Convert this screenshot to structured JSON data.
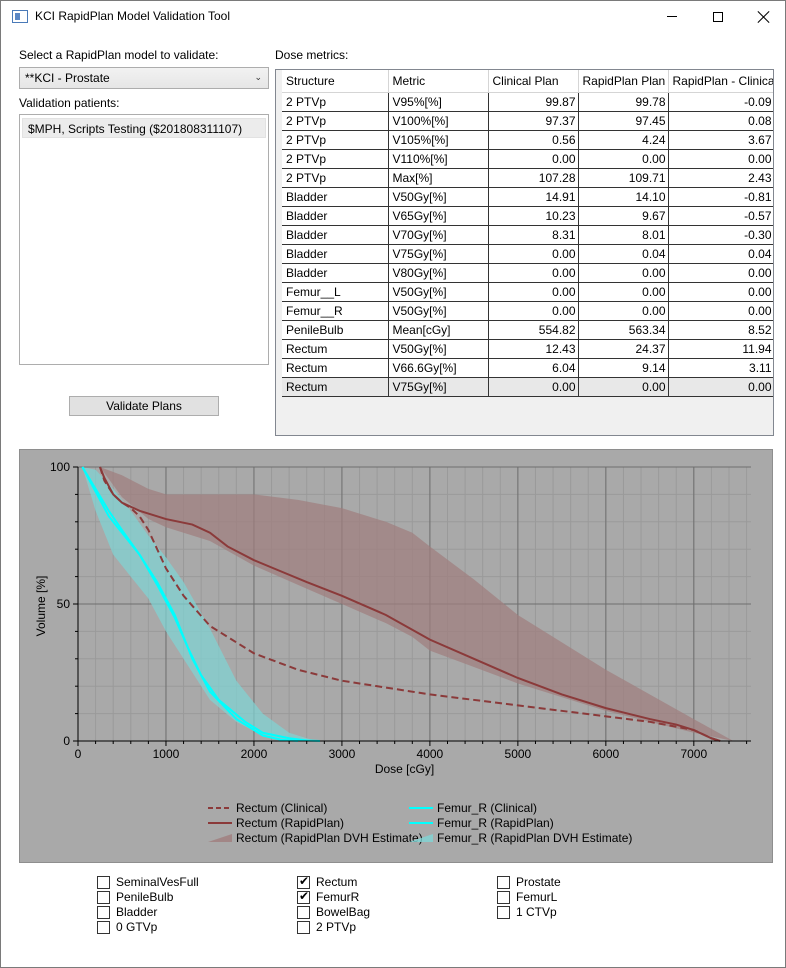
{
  "window": {
    "title": "KCI RapidPlan Model Validation Tool"
  },
  "left": {
    "model_label": "Select a RapidPlan model to validate:",
    "model_value": "**KCI - Prostate",
    "patients_label": "Validation patients:",
    "patients": [
      "$MPH, Scripts Testing ($201808311107)"
    ],
    "validate_button": "Validate Plans"
  },
  "metrics": {
    "label": "Dose metrics:",
    "columns": [
      "Structure",
      "Metric",
      "Clinical Plan",
      "RapidPlan Plan",
      "RapidPlan - Clinica"
    ],
    "rows": [
      [
        "2 PTVp",
        "V95%[%]",
        "99.87",
        "99.78",
        "-0.09"
      ],
      [
        "2 PTVp",
        "V100%[%]",
        "97.37",
        "97.45",
        "0.08"
      ],
      [
        "2 PTVp",
        "V105%[%]",
        "0.56",
        "4.24",
        "3.67"
      ],
      [
        "2 PTVp",
        "V110%[%]",
        "0.00",
        "0.00",
        "0.00"
      ],
      [
        "2 PTVp",
        "Max[%]",
        "107.28",
        "109.71",
        "2.43"
      ],
      [
        "Bladder",
        "V50Gy[%]",
        "14.91",
        "14.10",
        "-0.81"
      ],
      [
        "Bladder",
        "V65Gy[%]",
        "10.23",
        "9.67",
        "-0.57"
      ],
      [
        "Bladder",
        "V70Gy[%]",
        "8.31",
        "8.01",
        "-0.30"
      ],
      [
        "Bladder",
        "V75Gy[%]",
        "0.00",
        "0.04",
        "0.04"
      ],
      [
        "Bladder",
        "V80Gy[%]",
        "0.00",
        "0.00",
        "0.00"
      ],
      [
        "Femur__L",
        "V50Gy[%]",
        "0.00",
        "0.00",
        "0.00"
      ],
      [
        "Femur__R",
        "V50Gy[%]",
        "0.00",
        "0.00",
        "0.00"
      ],
      [
        "PenileBulb",
        "Mean[cGy]",
        "554.82",
        "563.34",
        "8.52"
      ],
      [
        "Rectum",
        "V50Gy[%]",
        "12.43",
        "24.37",
        "11.94"
      ],
      [
        "Rectum",
        "V66.6Gy[%]",
        "6.04",
        "9.14",
        "3.11"
      ],
      [
        "Rectum",
        "V75Gy[%]",
        "0.00",
        "0.00",
        "0.00"
      ]
    ]
  },
  "chart_data": {
    "type": "line",
    "xlabel": "Dose [cGy]",
    "ylabel": "Volume [%]",
    "xlim": [
      0,
      7650
    ],
    "ylim": [
      0,
      100
    ],
    "xticks": [
      "0",
      "1000",
      "2000",
      "3000",
      "4000",
      "5000",
      "6000",
      "7000"
    ],
    "yticks": [
      "0",
      "50",
      "100"
    ],
    "grid": true,
    "legend_position": "bottom",
    "colors": {
      "rectum": "#8b3a3a",
      "rectum_band": "#a07d7d",
      "femur": "#00ffff",
      "femur_band": "#7fd6d6",
      "background": "#a9a9a9"
    },
    "series": [
      {
        "name": "Rectum (Clinical)",
        "style": "dashed",
        "color": "#8b3a3a",
        "x": [
          250,
          300,
          400,
          500,
          600,
          700,
          800,
          900,
          1000,
          1200,
          1500,
          2000,
          2500,
          3000,
          4000,
          5000,
          6000,
          6500,
          7000,
          7200,
          7300
        ],
        "y": [
          100,
          95,
          90,
          87,
          85,
          82,
          77,
          70,
          63,
          53,
          42,
          32,
          26,
          22,
          17,
          13,
          9,
          7,
          4,
          1,
          0
        ]
      },
      {
        "name": "Rectum (RapidPlan)",
        "style": "solid",
        "color": "#8b3a3a",
        "x": [
          250,
          300,
          400,
          500,
          700,
          1000,
          1300,
          1500,
          1700,
          2000,
          2300,
          2600,
          3000,
          3500,
          4000,
          4500,
          5000,
          5500,
          6000,
          6500,
          6800,
          7000,
          7200,
          7300
        ],
        "y": [
          100,
          96,
          90,
          87,
          84,
          81,
          79,
          76,
          71,
          66,
          62,
          58,
          53,
          46,
          37,
          30,
          23,
          17,
          12,
          8,
          6,
          4,
          1,
          0
        ]
      },
      {
        "name": "Rectum (RapidPlan DVH Estimate)",
        "style": "band",
        "color": "#a07d7d",
        "x": [
          250,
          500,
          800,
          1000,
          1500,
          2000,
          2500,
          3000,
          3500,
          3800,
          4000,
          4500,
          5000,
          6000,
          7000,
          7450
        ],
        "upper": [
          100,
          97,
          92,
          90,
          90,
          90,
          88,
          85,
          80,
          76,
          71,
          59,
          46,
          26,
          8,
          0
        ],
        "lower": [
          100,
          89,
          81,
          78,
          73,
          64,
          57,
          50,
          43,
          38,
          33,
          27,
          21,
          11,
          3,
          0
        ]
      },
      {
        "name": "Femur_R (Clinical)",
        "style": "solid",
        "color": "#00ffff",
        "x": [
          50,
          200,
          350,
          500,
          700,
          900,
          1100,
          1300,
          1500,
          1800,
          2100,
          2300,
          2500
        ],
        "y": [
          100,
          91,
          82,
          76,
          68,
          58,
          46,
          30,
          18,
          8,
          2,
          0.5,
          0
        ]
      },
      {
        "name": "Femur_R (RapidPlan)",
        "style": "solid",
        "color": "#00ffff",
        "x": [
          50,
          200,
          350,
          500,
          700,
          900,
          1100,
          1250,
          1400,
          1600,
          1900,
          2100,
          2400,
          2600,
          2750
        ],
        "y": [
          100,
          92,
          84,
          77,
          68,
          57,
          45,
          34,
          24,
          15,
          7,
          3,
          1,
          0.2,
          0
        ]
      },
      {
        "name": "Femur_R (RapidPlan DVH Estimate)",
        "style": "band",
        "color": "#7fd6d6",
        "x": [
          50,
          200,
          400,
          600,
          800,
          1000,
          1200,
          1500,
          1800,
          2100,
          2400,
          2700
        ],
        "upper": [
          100,
          99,
          92,
          84,
          75,
          67,
          58,
          41,
          22,
          10,
          3,
          0
        ],
        "lower": [
          100,
          84,
          68,
          60,
          52,
          40,
          30,
          15,
          7,
          2,
          0,
          0
        ]
      }
    ]
  },
  "structures": {
    "columns": [
      [
        {
          "label": "SeminalVesFull",
          "checked": false
        },
        {
          "label": "PenileBulb",
          "checked": false
        },
        {
          "label": "Bladder",
          "checked": false
        },
        {
          "label": "0 GTVp",
          "checked": false
        }
      ],
      [
        {
          "label": "Rectum",
          "checked": true
        },
        {
          "label": "FemurR",
          "checked": true
        },
        {
          "label": "BowelBag",
          "checked": false
        },
        {
          "label": "2 PTVp",
          "checked": false
        }
      ],
      [
        {
          "label": "Prostate",
          "checked": false
        },
        {
          "label": "FemurL",
          "checked": false
        },
        {
          "label": "1 CTVp",
          "checked": false
        }
      ]
    ]
  }
}
